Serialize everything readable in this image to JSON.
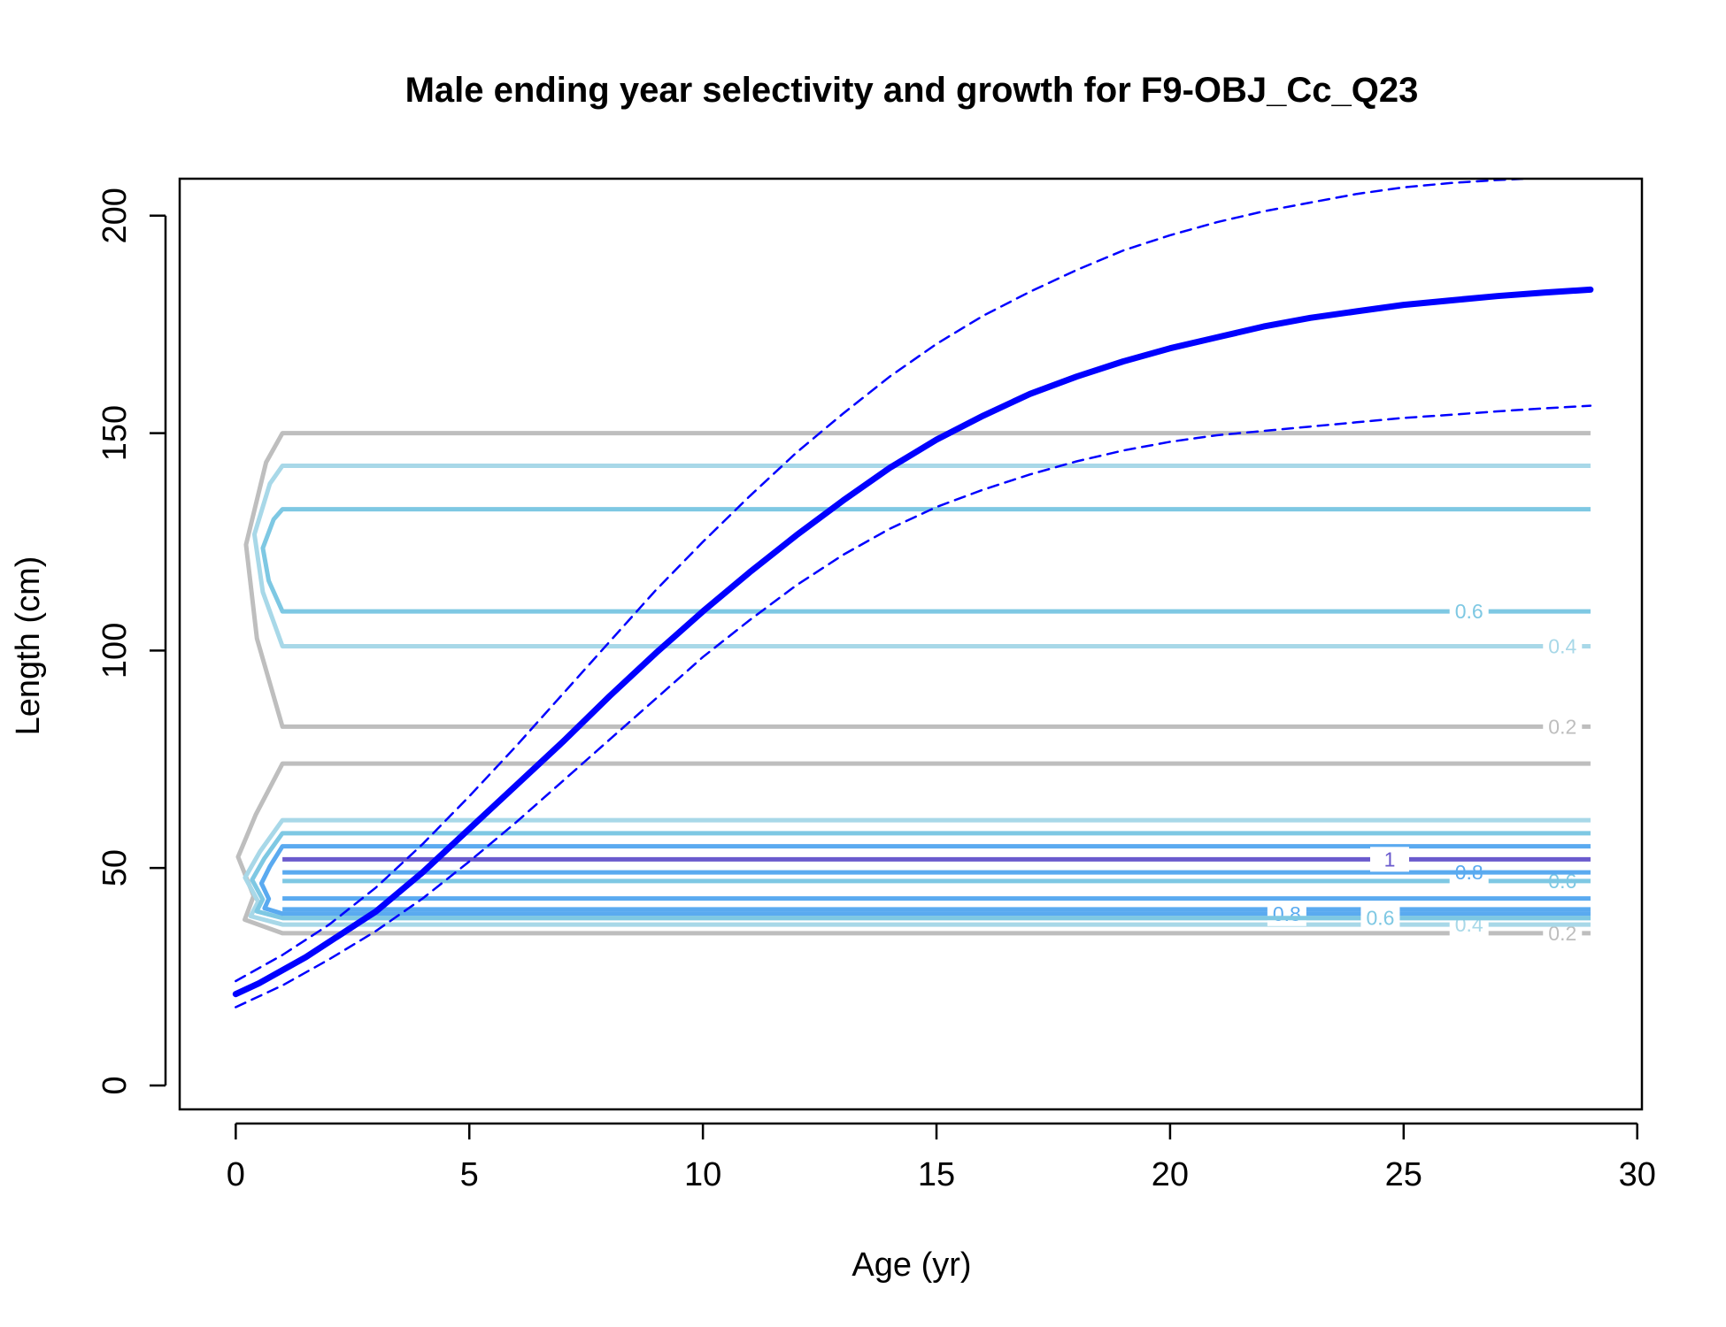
{
  "chart_data": {
    "type": "line",
    "title": "Male ending year selectivity and growth for F9-OBJ_Cc_Q23",
    "xlabel": "Age (yr)",
    "ylabel": "Length (cm)",
    "xlim": [
      -1.2,
      30.1
    ],
    "ylim": [
      -5.5,
      208.5
    ],
    "xticks": [
      0,
      5,
      10,
      15,
      20,
      25,
      30
    ],
    "yticks": [
      0,
      50,
      100,
      150,
      200
    ],
    "xtick_labels": [
      "0",
      "5",
      "10",
      "15",
      "20",
      "25",
      "30"
    ],
    "ytick_labels": [
      "0",
      "50",
      "100",
      "150",
      "200"
    ],
    "grid": false,
    "series": [
      {
        "role": "mean",
        "color": "#0000ff",
        "x": [
          0,
          0.5,
          1,
          1.5,
          2,
          3,
          4,
          5,
          6,
          7,
          8,
          9,
          10,
          11,
          12,
          13,
          14,
          15,
          16,
          17,
          18,
          19,
          20,
          21,
          22,
          23,
          24,
          25,
          26,
          27,
          28,
          29
        ],
        "y": [
          21,
          23.5,
          26.5,
          29.5,
          33,
          40,
          49,
          59,
          69,
          79,
          89.5,
          99.5,
          109,
          118,
          126.5,
          134.5,
          142,
          148.5,
          154,
          159,
          163,
          166.5,
          169.5,
          172,
          174.5,
          176.5,
          178,
          179.5,
          180.5,
          181.5,
          182.3,
          183
        ]
      },
      {
        "role": "upper",
        "color": "#0000ff",
        "x": [
          0,
          1,
          2,
          3,
          4,
          5,
          6,
          7,
          8,
          9,
          10,
          11,
          12,
          13,
          14,
          15,
          16,
          17,
          18,
          19,
          20,
          21,
          22,
          23,
          24,
          25,
          26,
          27,
          28,
          29
        ],
        "y": [
          24,
          30,
          37,
          45.5,
          55.5,
          66.5,
          78,
          90,
          102,
          114,
          125,
          135.5,
          145.5,
          154.5,
          163,
          170.5,
          177,
          182.5,
          187.5,
          192,
          195.5,
          198.5,
          201,
          203,
          205,
          206.5,
          207.5,
          208.2,
          208.7,
          209
        ]
      },
      {
        "role": "lower",
        "color": "#0000ff",
        "x": [
          0,
          1,
          2,
          3,
          4,
          5,
          6,
          7,
          8,
          9,
          10,
          11,
          12,
          13,
          14,
          15,
          16,
          17,
          18,
          19,
          20,
          21,
          22,
          23,
          24,
          25,
          26,
          27,
          28,
          29
        ],
        "y": [
          18,
          23,
          29,
          35.5,
          43,
          51.5,
          60.5,
          70,
          79.5,
          89,
          98.5,
          107,
          115,
          122,
          128,
          133,
          137,
          140.5,
          143.5,
          146,
          148,
          149.5,
          150.5,
          151.5,
          152.5,
          153.5,
          154.2,
          155,
          155.7,
          156.3
        ]
      }
    ],
    "contours": [
      {
        "level": 0.2,
        "color": "#bebebe",
        "low": 82.5,
        "high": 150,
        "profile": "bulge",
        "x_end": 29,
        "label": "0.2",
        "label_x": 28.4,
        "label_y": 82.5
      },
      {
        "level": 0.4,
        "color": "#a8d8e8",
        "low": 101,
        "high": 142.5,
        "profile": "bulge",
        "x_end": 29,
        "label": "0.4",
        "label_x": 28.4,
        "label_y": 101
      },
      {
        "level": 0.6,
        "color": "#7ec8e3",
        "low": 109,
        "high": 132.5,
        "profile": "bulge",
        "x_end": 29,
        "label": "0.6",
        "label_x": 26.4,
        "label_y": 109
      },
      {
        "level": 0.2,
        "color": "#bebebe",
        "low": 35,
        "high": 74,
        "profile": "bump",
        "x_end": 29,
        "label": "0.2",
        "label_x": 28.4,
        "label_y": 35
      },
      {
        "level": 0.4,
        "color": "#a8d8e8",
        "low": 37,
        "high": 61,
        "profile": "bump",
        "x_end": 29,
        "label": "0.4",
        "label_x": 26.4,
        "label_y": 37
      },
      {
        "level": 0.6,
        "color": "#7ec8e3",
        "low": 38.5,
        "high": 58,
        "profile": "bump",
        "x_end": 29,
        "label": "0.6",
        "label_x": 28.4,
        "label_y": 47
      },
      {
        "level": 0.6,
        "color": "#7ec8e3",
        "low": 47,
        "high": 47,
        "profile": "flat",
        "x_end": 29,
        "label": "",
        "label_x": 0,
        "label_y": 0
      },
      {
        "level": 0.8,
        "color": "#5aaaf0",
        "low": 39.5,
        "high": 55,
        "profile": "bump",
        "x_end": 29,
        "label": "0.8",
        "label_x": 26.4,
        "label_y": 49
      },
      {
        "level": 0.8,
        "color": "#5aaaf0",
        "low": 49,
        "high": 49,
        "profile": "flat",
        "x_end": 29,
        "label": "",
        "label_x": 0,
        "label_y": 0
      },
      {
        "level": 0.8,
        "color": "#5aaaf0",
        "low": 40.5,
        "high": 43,
        "profile": "flat",
        "x_end": 29,
        "label": "0.8",
        "label_x": 22.5,
        "label_y": 39.5
      },
      {
        "level": 0.6,
        "color": "#7ec8e3",
        "low": 38.5,
        "high": 38.5,
        "profile": "flat",
        "x_end": 29,
        "label": "0.6",
        "label_x": 24.5,
        "label_y": 38.5
      },
      {
        "level": 1,
        "color": "#6a5acd",
        "low": 52,
        "high": 52,
        "profile": "flat",
        "x_end": 29,
        "label": "1",
        "label_x": 24.7,
        "label_y": 52
      }
    ]
  }
}
